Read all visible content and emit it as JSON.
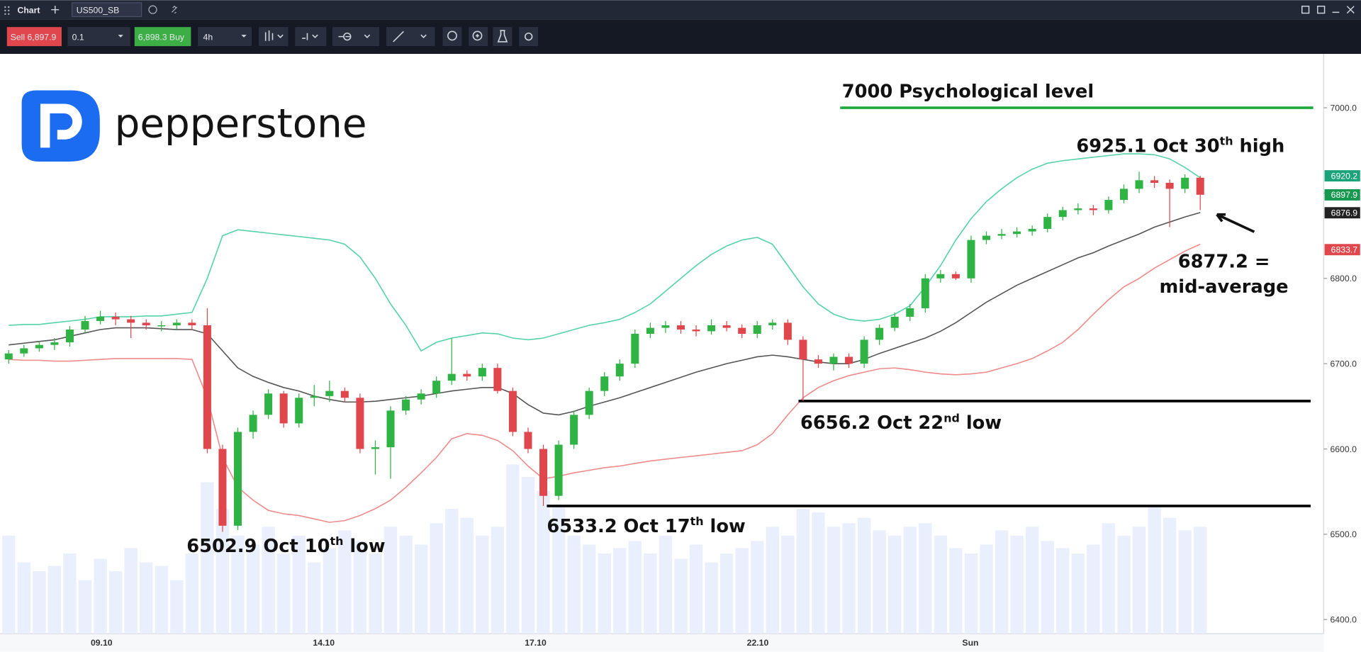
{
  "toolbar": {
    "tab": "Chart",
    "symbol": "US500_SB",
    "sell": "Sell 6,897.9",
    "quantity": "0.1",
    "buy": "6,898.3 Buy",
    "timeframe": "4h"
  },
  "logo": "pepperstone",
  "chart_data": {
    "type": "candlestick",
    "ylim": [
      6383.5,
      7063.1
    ],
    "yticks": [
      {
        "value": 6400,
        "label": "6400.0"
      },
      {
        "value": 6500,
        "label": "6500.0"
      },
      {
        "value": 6600,
        "label": "6600.0"
      },
      {
        "value": 6700,
        "label": "6700.0"
      },
      {
        "value": 6800,
        "label": "6800.0"
      },
      {
        "value": 6900,
        "label": "6900.0"
      },
      {
        "value": 7000,
        "label": "7000.0"
      }
    ],
    "x_labels": [
      "09.10",
      "14.10",
      "17.10",
      "22.10",
      "Sun"
    ],
    "up_color": "#2fb344",
    "down_color": "#e0474c",
    "volume_color": "#e9effc",
    "candles": [
      [
        6705,
        6716,
        6700,
        6712
      ],
      [
        6712,
        6722,
        6708,
        6718
      ],
      [
        6718,
        6726,
        6714,
        6722
      ],
      [
        6722,
        6730,
        6716,
        6725
      ],
      [
        6725,
        6744,
        6720,
        6740
      ],
      [
        6740,
        6756,
        6736,
        6750
      ],
      [
        6750,
        6762,
        6746,
        6755
      ],
      [
        6755,
        6760,
        6745,
        6752
      ],
      [
        6752,
        6756,
        6730,
        6748
      ],
      [
        6748,
        6752,
        6740,
        6745
      ],
      [
        6745,
        6750,
        6738,
        6745
      ],
      [
        6745,
        6752,
        6740,
        6748
      ],
      [
        6748,
        6752,
        6740,
        6745
      ],
      [
        6745,
        6765,
        6595,
        6600
      ],
      [
        6600,
        6605,
        6502.9,
        6510
      ],
      [
        6510,
        6625,
        6505,
        6620
      ],
      [
        6620,
        6645,
        6612,
        6640
      ],
      [
        6640,
        6670,
        6635,
        6665
      ],
      [
        6665,
        6668,
        6625,
        6630
      ],
      [
        6630,
        6665,
        6625,
        6660
      ],
      [
        6660,
        6675,
        6650,
        6662
      ],
      [
        6662,
        6680,
        6655,
        6668
      ],
      [
        6668,
        6672,
        6655,
        6660
      ],
      [
        6660,
        6665,
        6595,
        6600
      ],
      [
        6600,
        6610,
        6570,
        6602
      ],
      [
        6602,
        6650,
        6565,
        6645
      ],
      [
        6645,
        6662,
        6640,
        6658
      ],
      [
        6658,
        6670,
        6652,
        6665
      ],
      [
        6665,
        6685,
        6660,
        6680
      ],
      [
        6680,
        6730,
        6675,
        6688
      ],
      [
        6688,
        6692,
        6680,
        6685
      ],
      [
        6685,
        6700,
        6680,
        6695
      ],
      [
        6695,
        6700,
        6665,
        6668
      ],
      [
        6668,
        6672,
        6615,
        6620
      ],
      [
        6620,
        6625,
        6595,
        6600
      ],
      [
        6600,
        6605,
        6533.2,
        6545
      ],
      [
        6545,
        6610,
        6540,
        6605
      ],
      [
        6605,
        6645,
        6600,
        6640
      ],
      [
        6640,
        6672,
        6635,
        6668
      ],
      [
        6668,
        6690,
        6662,
        6685
      ],
      [
        6685,
        6705,
        6680,
        6700
      ],
      [
        6700,
        6740,
        6695,
        6735
      ],
      [
        6735,
        6748,
        6730,
        6742
      ],
      [
        6742,
        6750,
        6736,
        6745
      ],
      [
        6745,
        6750,
        6735,
        6740
      ],
      [
        6740,
        6745,
        6732,
        6738
      ],
      [
        6738,
        6752,
        6734,
        6745
      ],
      [
        6745,
        6750,
        6738,
        6742
      ],
      [
        6742,
        6746,
        6730,
        6735
      ],
      [
        6735,
        6750,
        6730,
        6745
      ],
      [
        6745,
        6752,
        6740,
        6748
      ],
      [
        6748,
        6752,
        6722,
        6728
      ],
      [
        6728,
        6732,
        6656.2,
        6705
      ],
      [
        6705,
        6710,
        6695,
        6700
      ],
      [
        6700,
        6712,
        6692,
        6708
      ],
      [
        6708,
        6712,
        6695,
        6700
      ],
      [
        6700,
        6732,
        6695,
        6728
      ],
      [
        6728,
        6746,
        6722,
        6742
      ],
      [
        6742,
        6760,
        6738,
        6755
      ],
      [
        6755,
        6770,
        6750,
        6765
      ],
      [
        6765,
        6805,
        6760,
        6800
      ],
      [
        6800,
        6810,
        6795,
        6805
      ],
      [
        6805,
        6808,
        6798,
        6800
      ],
      [
        6800,
        6850,
        6795,
        6845
      ],
      [
        6845,
        6855,
        6840,
        6850
      ],
      [
        6850,
        6858,
        6846,
        6852
      ],
      [
        6852,
        6860,
        6848,
        6855
      ],
      [
        6855,
        6862,
        6850,
        6858
      ],
      [
        6858,
        6876,
        6854,
        6872
      ],
      [
        6872,
        6884,
        6868,
        6880
      ],
      [
        6880,
        6888,
        6875,
        6882
      ],
      [
        6882,
        6886,
        6874,
        6880
      ],
      [
        6880,
        6896,
        6876,
        6892
      ],
      [
        6892,
        6910,
        6888,
        6905
      ],
      [
        6905,
        6925.1,
        6900,
        6915
      ],
      [
        6915,
        6920,
        6906,
        6912
      ],
      [
        6912,
        6916,
        6860,
        6905
      ],
      [
        6905,
        6922,
        6900,
        6918
      ],
      [
        6918,
        6920.2,
        6880,
        6898
      ]
    ],
    "volume": [
      55,
      40,
      35,
      38,
      45,
      30,
      42,
      35,
      48,
      40,
      38,
      30,
      45,
      85,
      70,
      55,
      50,
      60,
      45,
      55,
      40,
      48,
      58,
      52,
      45,
      60,
      55,
      50,
      62,
      70,
      65,
      55,
      60,
      95,
      88,
      80,
      72,
      55,
      50,
      45,
      48,
      52,
      45,
      55,
      42,
      50,
      40,
      45,
      48,
      52,
      60,
      55,
      70,
      68,
      60,
      62,
      65,
      58,
      55,
      60,
      62,
      55,
      48,
      45,
      50,
      58,
      55,
      60,
      52,
      48,
      45,
      50,
      62,
      55,
      60,
      72,
      65,
      58,
      60
    ],
    "bands": {
      "upper": [
        6745,
        6746,
        6746,
        6748,
        6750,
        6752,
        6755,
        6755,
        6755,
        6756,
        6756,
        6758,
        6760,
        6800,
        6850,
        6857,
        6855,
        6853,
        6851,
        6849,
        6847,
        6845,
        6840,
        6825,
        6800,
        6770,
        6745,
        6715,
        6725,
        6730,
        6733,
        6736,
        6735,
        6730,
        6728,
        6730,
        6735,
        6740,
        6745,
        6748,
        6752,
        6760,
        6770,
        6785,
        6800,
        6815,
        6828,
        6838,
        6845,
        6848,
        6840,
        6815,
        6790,
        6770,
        6758,
        6752,
        6750,
        6752,
        6758,
        6768,
        6790,
        6815,
        6845,
        6870,
        6890,
        6905,
        6918,
        6928,
        6935,
        6938,
        6940,
        6942,
        6944,
        6946,
        6946,
        6945,
        6940,
        6930,
        6918
      ],
      "middle": [
        6722,
        6724,
        6726,
        6728,
        6732,
        6736,
        6740,
        6742,
        6742,
        6742,
        6741,
        6740,
        6740,
        6735,
        6715,
        6695,
        6685,
        6678,
        6672,
        6668,
        6662,
        6658,
        6655,
        6655,
        6656,
        6658,
        6660,
        6662,
        6665,
        6668,
        6670,
        6672,
        6672,
        6665,
        6652,
        6642,
        6640,
        6644,
        6650,
        6655,
        6660,
        6666,
        6672,
        6678,
        6684,
        6690,
        6695,
        6700,
        6704,
        6708,
        6710,
        6708,
        6705,
        6702,
        6700,
        6700,
        6705,
        6712,
        6718,
        6724,
        6730,
        6738,
        6748,
        6760,
        6772,
        6782,
        6792,
        6800,
        6808,
        6816,
        6824,
        6830,
        6838,
        6845,
        6852,
        6860,
        6866,
        6872,
        6877.2
      ],
      "lower": [
        6705,
        6704,
        6704,
        6703,
        6703,
        6704,
        6705,
        6706,
        6706,
        6706,
        6706,
        6706,
        6705,
        6660,
        6590,
        6555,
        6540,
        6528,
        6524,
        6522,
        6518,
        6514,
        6516,
        6522,
        6530,
        6540,
        6555,
        6572,
        6590,
        6612,
        6618,
        6616,
        6610,
        6598,
        6580,
        6565,
        6568,
        6572,
        6575,
        6578,
        6580,
        6583,
        6586,
        6588,
        6590,
        6592,
        6594,
        6596,
        6598,
        6605,
        6618,
        6640,
        6660,
        6672,
        6680,
        6686,
        6690,
        6694,
        6695,
        6693,
        6690,
        6688,
        6687,
        6688,
        6690,
        6695,
        6700,
        6706,
        6715,
        6725,
        6740,
        6758,
        6775,
        6790,
        6800,
        6812,
        6822,
        6832,
        6840
      ]
    },
    "band_colors": {
      "upper": "#55d3a8",
      "middle": "#555555",
      "lower": "#f08a8a"
    },
    "levels": [
      {
        "value": 7000,
        "color": "#1ea83a"
      },
      {
        "value": 6656.2,
        "color": "#000000"
      },
      {
        "value": 6533.2,
        "color": "#000000"
      }
    ],
    "price_tags": [
      {
        "value": 6920.2,
        "label": "6920.2",
        "color": "#1aa37a"
      },
      {
        "value": 6897.9,
        "label": "6897.9",
        "color": "#17984f"
      },
      {
        "value": 6876.9,
        "label": "6876.9",
        "color": "#222222"
      },
      {
        "value": 6833.7,
        "label": "6833.7",
        "color": "#e0474c"
      }
    ],
    "annotations": [
      {
        "text": "7000 Psychological level",
        "color": "#1ea83a"
      },
      {
        "text": "6925.1 Oct 30",
        "sup": "th",
        "rest": " high"
      },
      {
        "text": "6877.2 ="
      },
      {
        "text": "mid-average"
      },
      {
        "text": "6656.2 Oct 22",
        "sup": "nd",
        "rest": " low"
      },
      {
        "text": "6533.2 Oct 17",
        "sup": "th",
        "rest": " low"
      },
      {
        "text": "6502.9 Oct 10",
        "sup": "th",
        "rest": " low"
      }
    ]
  }
}
